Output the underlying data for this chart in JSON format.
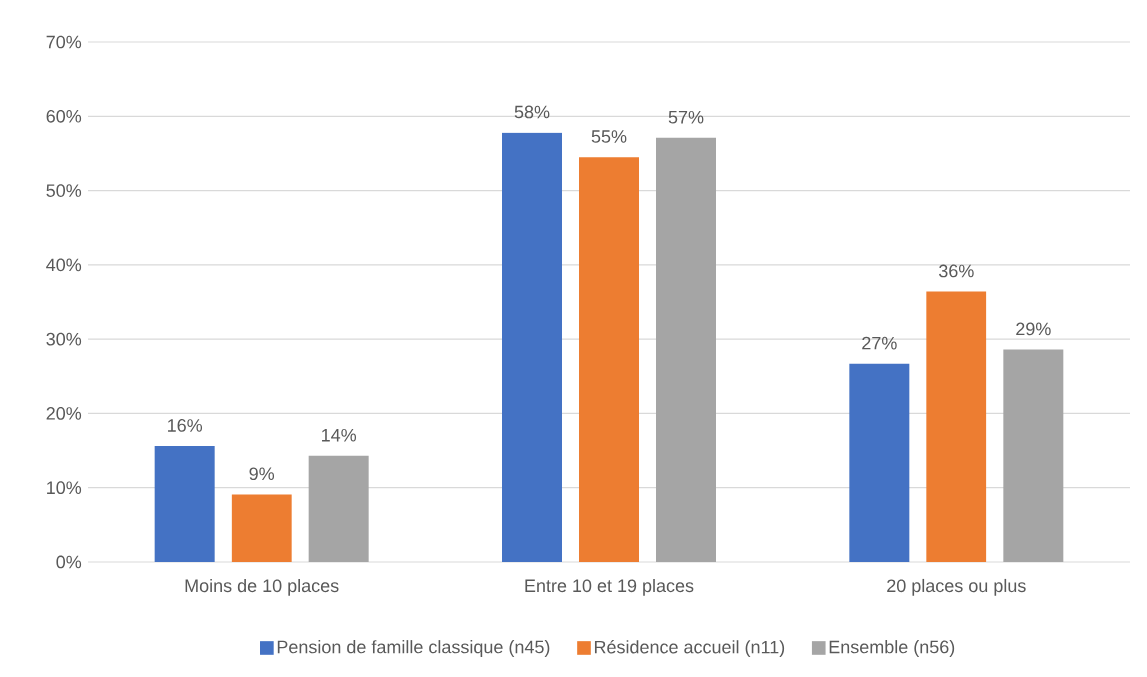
{
  "chart_data": {
    "type": "bar",
    "categories": [
      "Moins de 10 places",
      "Entre 10 et 19 places",
      "20 places ou plus"
    ],
    "series": [
      {
        "name": "Pension de famille classique (n45)",
        "color": "#4472c4",
        "values": [
          15.6,
          57.8,
          26.7
        ],
        "value_labels": [
          "16%",
          "58%",
          "27%"
        ]
      },
      {
        "name": "Résidence accueil (n11)",
        "color": "#ed7d31",
        "values": [
          9.1,
          54.5,
          36.4
        ],
        "value_labels": [
          "9%",
          "55%",
          "36%"
        ]
      },
      {
        "name": "Ensemble (n56)",
        "color": "#a5a5a5",
        "values": [
          14.3,
          57.1,
          28.6
        ],
        "value_labels": [
          "14%",
          "57%",
          "29%"
        ]
      }
    ],
    "ylim": [
      0,
      70
    ],
    "yticks": [
      {
        "value": 0,
        "label": "0%"
      },
      {
        "value": 10,
        "label": "10%"
      },
      {
        "value": 20,
        "label": "20%"
      },
      {
        "value": 30,
        "label": "30%"
      },
      {
        "value": 40,
        "label": "40%"
      },
      {
        "value": 50,
        "label": "50%"
      },
      {
        "value": 60,
        "label": "60%"
      },
      {
        "value": 70,
        "label": "70%"
      }
    ],
    "grid": "y",
    "legend": "bottom"
  }
}
